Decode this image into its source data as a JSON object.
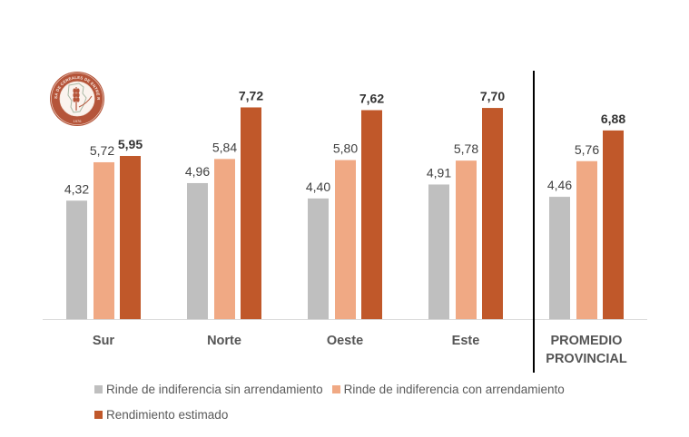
{
  "chart_data": {
    "type": "bar",
    "title": "",
    "xlabel": "",
    "ylabel": "",
    "ylim": [
      0,
      9
    ],
    "grid": false,
    "legend_position": "bottom",
    "categories": [
      "Sur",
      "Norte",
      "Oeste",
      "Este",
      "PROMEDIO PROVINCIAL"
    ],
    "category_lines": [
      [
        "Sur"
      ],
      [
        "Norte"
      ],
      [
        "Oeste"
      ],
      [
        "Este"
      ],
      [
        "PROMEDIO",
        "PROVINCIAL"
      ]
    ],
    "series": [
      {
        "name": "Rinde de indiferencia sin arrendamiento",
        "color": "#BFBFBF",
        "label_bold": false,
        "values": [
          4.32,
          4.96,
          4.4,
          4.91,
          4.46
        ],
        "labels": [
          "4,32",
          "4,96",
          "4,40",
          "4,91",
          "4,46"
        ]
      },
      {
        "name": "Rinde de indiferencia con arrendamiento",
        "color": "#F0A984",
        "label_bold": false,
        "values": [
          5.72,
          5.84,
          5.8,
          5.78,
          5.76
        ],
        "labels": [
          "5,72",
          "5,84",
          "5,80",
          "5,78",
          "5,76"
        ]
      },
      {
        "name": "Rendimiento estimado",
        "color": "#C0582A",
        "label_bold": true,
        "values": [
          5.95,
          7.72,
          7.62,
          7.7,
          6.88
        ],
        "labels": [
          "5,95",
          "7,72",
          "7,62",
          "7,70",
          "6,88"
        ]
      }
    ],
    "annotations": [
      "vertical divider separating regional groups from PROMEDIO PROVINCIAL"
    ]
  },
  "logo": {
    "name": "Bolsa de Cereales de Entre Ríos",
    "ring_text": "BOLSA DE CEREALES DE ENTRE RÍOS",
    "year": "1976",
    "color": "#B5553A"
  },
  "colors": {
    "axis": "#D9D9D9",
    "divider": "#000000",
    "category_text": "#555555",
    "value_text": "#404040",
    "legend_text": "#595959"
  }
}
